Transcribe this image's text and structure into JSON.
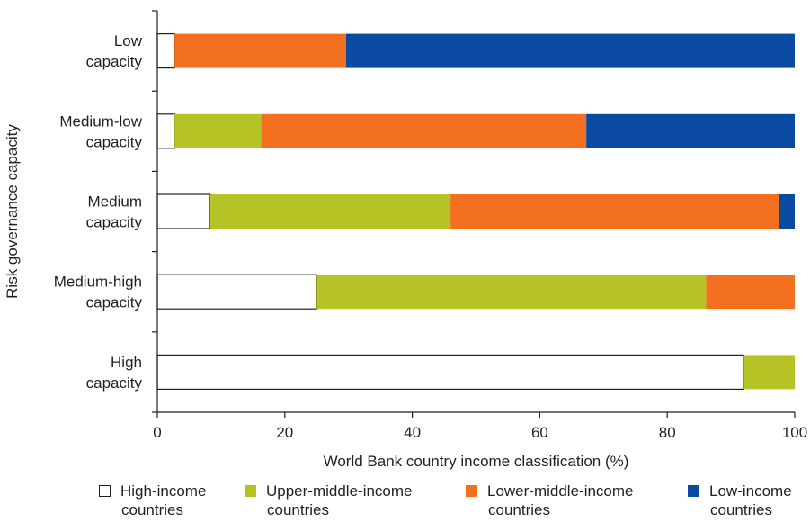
{
  "chart_data": {
    "type": "bar",
    "orientation": "horizontal",
    "stacked": true,
    "categories": [
      [
        "Low",
        "capacity"
      ],
      [
        "Medium-low",
        "capacity"
      ],
      [
        "Medium",
        "capacity"
      ],
      [
        "Medium-high",
        "capacity"
      ],
      [
        "High",
        "capacity"
      ]
    ],
    "series": [
      {
        "name": [
          "High-income",
          "countries"
        ],
        "color": "#ffffff",
        "values": [
          2.7,
          2.7,
          8.3,
          25.0,
          92.0
        ]
      },
      {
        "name": [
          "Upper-middle-income",
          "countries"
        ],
        "color": "#b5c424",
        "values": [
          0,
          13.6,
          37.7,
          61.1,
          8.0
        ]
      },
      {
        "name": [
          "Lower-middle-income",
          "countries"
        ],
        "color": "#f37021",
        "values": [
          26.9,
          51.0,
          51.5,
          13.9,
          0
        ]
      },
      {
        "name": [
          "Low-income",
          "countries"
        ],
        "color": "#0a4ba1",
        "values": [
          70.4,
          32.7,
          2.5,
          0,
          0
        ]
      }
    ],
    "xlabel": "World Bank country income classification (%)",
    "ylabel": "Risk governance capacity",
    "xlim": [
      0,
      100
    ],
    "xticks": [
      0,
      20,
      40,
      60,
      80,
      100
    ],
    "grid": false,
    "legend": "bottom"
  }
}
